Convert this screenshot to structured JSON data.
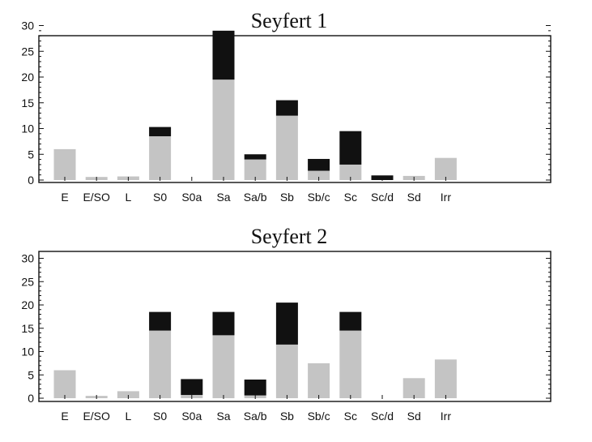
{
  "chart_data": [
    {
      "type": "bar",
      "stacked": true,
      "title": "Seyfert 1",
      "xlabel": "",
      "ylabel": "",
      "categories": [
        "E",
        "E/SO",
        "L",
        "S0",
        "S0a",
        "Sa",
        "Sa/b",
        "Sb",
        "Sb/c",
        "Sc",
        "Sc/d",
        "Sd",
        "Irr"
      ],
      "ylim": [
        0,
        31
      ],
      "yticks": [
        0,
        5,
        10,
        15,
        20,
        25,
        30
      ],
      "grid": false,
      "series": [
        {
          "color": "#c4c4c4",
          "values": [
            6,
            0.6,
            0.7,
            8.5,
            0,
            19.5,
            4,
            12.5,
            1.8,
            3,
            0,
            0.8,
            4.3
          ]
        },
        {
          "color": "#111111",
          "values": [
            0,
            0,
            0,
            1.8,
            0,
            9.5,
            1,
            3,
            2.3,
            6.5,
            0.9,
            0,
            0
          ]
        }
      ]
    },
    {
      "type": "bar",
      "stacked": true,
      "title": "Seyfert 2",
      "xlabel": "",
      "ylabel": "",
      "categories": [
        "E",
        "E/SO",
        "L",
        "S0",
        "S0a",
        "Sa",
        "Sa/b",
        "Sb",
        "Sb/c",
        "Sc",
        "Sc/d",
        "Sd",
        "Irr"
      ],
      "ylim": [
        0,
        31
      ],
      "yticks": [
        0,
        5,
        10,
        15,
        20,
        25,
        30
      ],
      "grid": false,
      "series": [
        {
          "color": "#c4c4c4",
          "values": [
            6,
            0.5,
            1.5,
            14.5,
            0.7,
            13.5,
            0.6,
            11.5,
            7.5,
            14.5,
            0,
            4.3,
            8.3
          ]
        },
        {
          "color": "#111111",
          "values": [
            0,
            0,
            0,
            4,
            3.4,
            5,
            3.4,
            9,
            0,
            4,
            0,
            0,
            0
          ]
        }
      ]
    }
  ]
}
